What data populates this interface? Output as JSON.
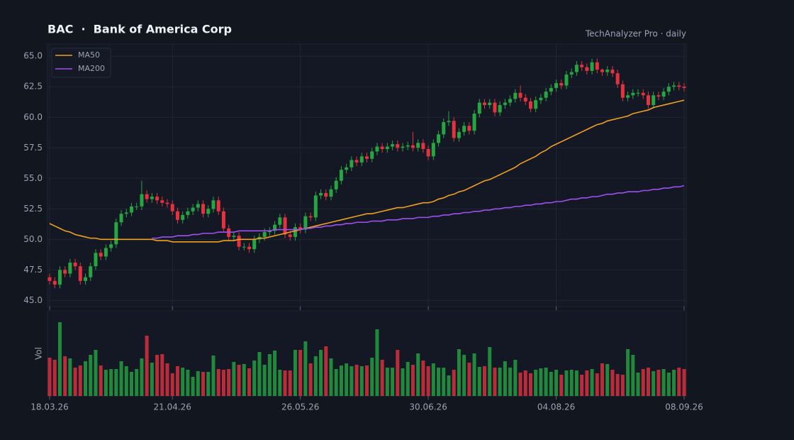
{
  "chart_data": {
    "type": "candlestick",
    "title": "BAC  ·  Bank of America Corp",
    "subtitle": "TechAnalyzer Pro · daily",
    "categories": [
      "18.03.26",
      null,
      null,
      null,
      null,
      null,
      null,
      null,
      null,
      null,
      null,
      null,
      null,
      null,
      null,
      null,
      null,
      null,
      null,
      null,
      null,
      null,
      null,
      null,
      "21.04.26",
      null,
      null,
      null,
      null,
      null,
      null,
      null,
      null,
      null,
      null,
      null,
      null,
      null,
      null,
      null,
      null,
      null,
      null,
      null,
      null,
      null,
      null,
      null,
      null,
      "26.05.26",
      null,
      null,
      null,
      null,
      null,
      null,
      null,
      null,
      null,
      null,
      null,
      null,
      null,
      null,
      null,
      null,
      null,
      null,
      null,
      null,
      null,
      null,
      null,
      null,
      "30.06.26",
      null,
      null,
      null,
      null,
      null,
      null,
      null,
      null,
      null,
      null,
      null,
      null,
      null,
      null,
      null,
      null,
      null,
      null,
      null,
      null,
      null,
      null,
      null,
      null,
      "04.08.26",
      null,
      null,
      null,
      null,
      null,
      null,
      null,
      null,
      null,
      null,
      null,
      null,
      null,
      null,
      null,
      null,
      null,
      null,
      null,
      null,
      null,
      null,
      null,
      null,
      "08.09.26"
    ],
    "open": [
      46.9,
      46.6,
      46.3,
      47.5,
      47.2,
      48.1,
      47.8,
      46.6,
      46.9,
      47.8,
      48.9,
      48.6,
      49.3,
      49.6,
      51.4,
      52.1,
      52.2,
      52.7,
      52.7,
      53.7,
      53.3,
      53.5,
      53.2,
      53.0,
      52.9,
      52.3,
      51.6,
      52.0,
      52.3,
      52.6,
      52.9,
      52.1,
      52.5,
      53.2,
      52.3,
      50.9,
      50.2,
      50.3,
      49.4,
      49.4,
      49.2,
      50.0,
      50.2,
      50.6,
      50.7,
      51.2,
      51.8,
      50.4,
      50.2,
      51.0,
      50.8,
      51.9,
      51.8,
      53.6,
      53.8,
      53.5,
      54.1,
      54.8,
      55.7,
      55.9,
      56.5,
      56.3,
      56.8,
      56.6,
      57.2,
      57.6,
      57.4,
      57.6,
      57.8,
      57.5,
      57.6,
      57.7,
      57.5,
      57.9,
      57.4,
      56.8,
      57.9,
      58.6,
      59.6,
      59.7,
      58.3,
      58.8,
      59.3,
      58.9,
      60.3,
      61.2,
      61.0,
      61.2,
      60.4,
      61.0,
      61.2,
      61.5,
      62.0,
      61.6,
      61.3,
      60.7,
      61.4,
      61.6,
      62.1,
      62.4,
      62.8,
      62.6,
      63.5,
      63.7,
      64.3,
      64.1,
      63.8,
      64.5,
      63.9,
      63.7,
      63.9,
      63.6,
      62.7,
      61.6,
      61.8,
      62.0,
      62.0,
      61.8,
      61.0,
      61.8,
      61.7,
      62.1,
      62.5,
      62.6,
      62.5
    ],
    "high": [
      47.2,
      46.9,
      47.8,
      47.8,
      48.4,
      48.4,
      48.1,
      47.2,
      48.1,
      49.2,
      49.2,
      49.6,
      49.9,
      51.7,
      52.4,
      52.5,
      53.0,
      53.0,
      54.8,
      54.0,
      53.8,
      53.8,
      53.5,
      53.3,
      53.2,
      52.6,
      52.3,
      52.6,
      52.9,
      53.2,
      53.2,
      52.8,
      53.5,
      53.5,
      52.6,
      51.2,
      50.6,
      50.6,
      49.7,
      49.7,
      50.3,
      50.5,
      50.9,
      51.0,
      51.5,
      52.1,
      52.1,
      50.7,
      51.3,
      51.3,
      52.2,
      52.2,
      53.9,
      54.1,
      54.1,
      54.4,
      55.1,
      56.0,
      56.2,
      56.8,
      56.8,
      57.1,
      57.1,
      57.5,
      57.9,
      57.9,
      57.9,
      58.1,
      58.1,
      57.9,
      58.0,
      58.8,
      58.2,
      58.2,
      57.7,
      58.2,
      58.9,
      59.9,
      60.5,
      60.0,
      59.1,
      59.6,
      59.6,
      60.6,
      61.5,
      61.5,
      61.5,
      61.5,
      61.3,
      61.5,
      61.8,
      62.3,
      62.6,
      61.9,
      61.6,
      61.7,
      61.9,
      62.4,
      62.7,
      63.1,
      63.1,
      63.8,
      64.0,
      64.6,
      64.6,
      64.4,
      64.8,
      64.8,
      64.0,
      64.2,
      64.2,
      63.9,
      63.0,
      62.1,
      62.3,
      62.3,
      62.3,
      62.1,
      62.1,
      62.1,
      62.4,
      62.8,
      62.9,
      62.9,
      62.8
    ],
    "low": [
      46.3,
      46.0,
      46.0,
      46.9,
      46.9,
      47.5,
      46.3,
      46.3,
      46.6,
      47.5,
      48.3,
      48.3,
      49.0,
      49.3,
      51.1,
      51.8,
      51.9,
      52.4,
      52.4,
      53.0,
      53.0,
      52.9,
      52.7,
      52.6,
      52.0,
      51.3,
      51.3,
      51.7,
      52.0,
      52.3,
      51.8,
      51.8,
      52.2,
      52.0,
      50.6,
      49.9,
      49.9,
      49.1,
      49.1,
      48.9,
      48.9,
      49.7,
      49.9,
      50.3,
      50.4,
      50.9,
      50.1,
      49.9,
      49.9,
      50.5,
      50.5,
      51.5,
      51.5,
      53.3,
      53.2,
      53.2,
      53.8,
      54.5,
      55.4,
      55.6,
      56.0,
      56.0,
      56.3,
      56.3,
      56.9,
      57.1,
      57.1,
      57.3,
      57.2,
      57.2,
      57.3,
      57.2,
      57.2,
      57.1,
      56.5,
      56.5,
      57.6,
      58.3,
      59.3,
      58.0,
      58.0,
      58.5,
      58.6,
      58.6,
      60.0,
      60.7,
      60.7,
      60.1,
      60.1,
      60.7,
      60.9,
      61.2,
      61.3,
      61.0,
      60.4,
      60.4,
      61.1,
      61.3,
      61.8,
      62.1,
      62.3,
      62.3,
      63.2,
      63.4,
      63.8,
      63.5,
      63.5,
      63.6,
      63.4,
      63.4,
      63.3,
      62.4,
      61.3,
      61.3,
      61.5,
      61.7,
      61.5,
      60.7,
      60.7,
      61.4,
      61.4,
      61.8,
      62.2,
      62.2,
      62.1
    ],
    "close": [
      46.6,
      46.3,
      47.5,
      47.2,
      48.1,
      47.8,
      46.6,
      46.9,
      47.8,
      48.9,
      48.6,
      49.3,
      49.6,
      51.4,
      52.1,
      52.2,
      52.7,
      52.7,
      53.7,
      53.3,
      53.5,
      53.2,
      53.0,
      52.9,
      52.3,
      51.6,
      52.0,
      52.3,
      52.6,
      52.9,
      52.1,
      52.5,
      53.2,
      52.3,
      50.9,
      50.2,
      50.3,
      49.4,
      49.4,
      49.2,
      50.0,
      50.2,
      50.6,
      50.7,
      51.2,
      51.8,
      50.4,
      50.2,
      51.0,
      50.8,
      51.9,
      51.8,
      53.6,
      53.8,
      53.5,
      54.1,
      54.8,
      55.7,
      55.9,
      56.5,
      56.3,
      56.8,
      56.6,
      57.2,
      57.6,
      57.4,
      57.6,
      57.8,
      57.5,
      57.6,
      57.7,
      57.5,
      57.9,
      57.4,
      56.8,
      57.9,
      58.6,
      59.6,
      59.7,
      58.3,
      58.8,
      59.3,
      58.9,
      60.3,
      61.2,
      61.0,
      61.2,
      60.4,
      61.0,
      61.2,
      61.5,
      62.0,
      61.6,
      61.3,
      60.7,
      61.4,
      61.6,
      62.1,
      62.4,
      62.8,
      62.6,
      63.5,
      63.7,
      64.3,
      64.1,
      63.8,
      64.5,
      63.9,
      63.7,
      63.9,
      63.6,
      62.7,
      61.6,
      61.8,
      62.0,
      62.0,
      61.8,
      61.0,
      61.8,
      61.7,
      62.1,
      62.5,
      62.6,
      62.5,
      62.4
    ],
    "up_color": "#26a641",
    "down_color": "#e5323e",
    "ylim": [
      44.5,
      66
    ],
    "yticks": [
      {
        "value": 45,
        "label": "45.0"
      },
      {
        "value": 47.5,
        "label": "47.5"
      },
      {
        "value": 50,
        "label": "50.0"
      },
      {
        "value": 52.5,
        "label": "52.5"
      },
      {
        "value": 55,
        "label": "55.0"
      },
      {
        "value": 57.5,
        "label": "57.5"
      },
      {
        "value": 60,
        "label": "60.0"
      },
      {
        "value": 62.5,
        "label": "62.5"
      },
      {
        "value": 65,
        "label": "65.0"
      }
    ],
    "grid": true,
    "legend": "upper left",
    "series": [
      {
        "name": "MA50",
        "color": "#f0a020",
        "values": [
          51.3,
          51.1,
          50.9,
          50.7,
          50.6,
          50.4,
          50.3,
          50.2,
          50.1,
          50.1,
          50.0,
          50.0,
          50.0,
          50.0,
          50.0,
          50.0,
          50.0,
          50.0,
          50.0,
          50.0,
          50.0,
          49.9,
          49.9,
          49.9,
          49.8,
          49.8,
          49.8,
          49.8,
          49.8,
          49.8,
          49.8,
          49.8,
          49.8,
          49.8,
          49.9,
          49.9,
          49.9,
          50.0,
          50.0,
          50.0,
          50.0,
          50.1,
          50.1,
          50.2,
          50.3,
          50.4,
          50.5,
          50.6,
          50.7,
          50.8,
          50.9,
          51.0,
          51.1,
          51.2,
          51.3,
          51.4,
          51.5,
          51.6,
          51.7,
          51.8,
          51.9,
          52.0,
          52.1,
          52.1,
          52.2,
          52.3,
          52.4,
          52.5,
          52.6,
          52.6,
          52.7,
          52.8,
          52.9,
          53.0,
          53.0,
          53.1,
          53.3,
          53.4,
          53.6,
          53.7,
          53.9,
          54.0,
          54.2,
          54.4,
          54.6,
          54.8,
          54.9,
          55.1,
          55.3,
          55.5,
          55.7,
          55.9,
          56.2,
          56.4,
          56.6,
          56.8,
          57.1,
          57.3,
          57.6,
          57.8,
          58.0,
          58.2,
          58.4,
          58.6,
          58.8,
          59.0,
          59.2,
          59.4,
          59.5,
          59.7,
          59.8,
          59.9,
          60.0,
          60.1,
          60.3,
          60.4,
          60.5,
          60.6,
          60.8,
          60.9,
          61.0,
          61.1,
          61.2,
          61.3,
          61.4
        ]
      },
      {
        "name": "MA200",
        "color": "#a050f0",
        "values": [
          null,
          null,
          null,
          null,
          null,
          null,
          null,
          null,
          null,
          null,
          null,
          null,
          null,
          null,
          null,
          null,
          null,
          null,
          null,
          null,
          50.1,
          50.1,
          50.2,
          50.2,
          50.2,
          50.3,
          50.3,
          50.3,
          50.4,
          50.4,
          50.5,
          50.5,
          50.5,
          50.6,
          50.6,
          50.6,
          50.6,
          50.7,
          50.7,
          50.7,
          50.7,
          50.7,
          50.7,
          50.7,
          50.8,
          50.8,
          50.8,
          50.8,
          50.8,
          50.8,
          50.9,
          50.9,
          51.0,
          51.0,
          51.1,
          51.1,
          51.2,
          51.2,
          51.3,
          51.3,
          51.4,
          51.4,
          51.4,
          51.5,
          51.5,
          51.5,
          51.6,
          51.6,
          51.6,
          51.7,
          51.7,
          51.7,
          51.8,
          51.8,
          51.8,
          51.9,
          51.9,
          52.0,
          52.0,
          52.1,
          52.1,
          52.2,
          52.2,
          52.3,
          52.3,
          52.4,
          52.4,
          52.5,
          52.5,
          52.6,
          52.6,
          52.7,
          52.7,
          52.8,
          52.8,
          52.9,
          52.9,
          53.0,
          53.0,
          53.1,
          53.1,
          53.2,
          53.3,
          53.3,
          53.4,
          53.4,
          53.5,
          53.5,
          53.6,
          53.7,
          53.7,
          53.8,
          53.8,
          53.9,
          53.9,
          53.9,
          54.0,
          54.0,
          54.1,
          54.1,
          54.2,
          54.2,
          54.3,
          54.3,
          54.4
        ]
      }
    ],
    "volume": {
      "label": "Vol",
      "values": [
        54,
        51,
        104,
        56,
        53,
        40,
        43,
        49,
        58,
        65,
        43,
        37,
        38,
        38,
        49,
        42,
        34,
        38,
        53,
        85,
        47,
        58,
        59,
        46,
        32,
        42,
        40,
        37,
        27,
        35,
        34,
        34,
        57,
        38,
        37,
        38,
        48,
        44,
        45,
        39,
        50,
        62,
        44,
        59,
        64,
        37,
        36,
        36,
        65,
        65,
        77,
        46,
        56,
        65,
        70,
        53,
        38,
        43,
        46,
        42,
        44,
        42,
        43,
        54,
        94,
        51,
        40,
        40,
        65,
        39,
        48,
        44,
        60,
        50,
        42,
        46,
        40,
        40,
        29,
        37,
        66,
        58,
        47,
        60,
        41,
        42,
        69,
        40,
        40,
        49,
        40,
        51,
        33,
        36,
        32,
        37,
        39,
        40,
        34,
        37,
        30,
        36,
        37,
        36,
        30,
        36,
        38,
        32,
        46,
        45,
        37,
        31,
        30,
        66,
        58,
        33,
        38,
        40,
        35,
        37,
        38,
        33,
        37,
        40,
        38
      ]
    }
  }
}
